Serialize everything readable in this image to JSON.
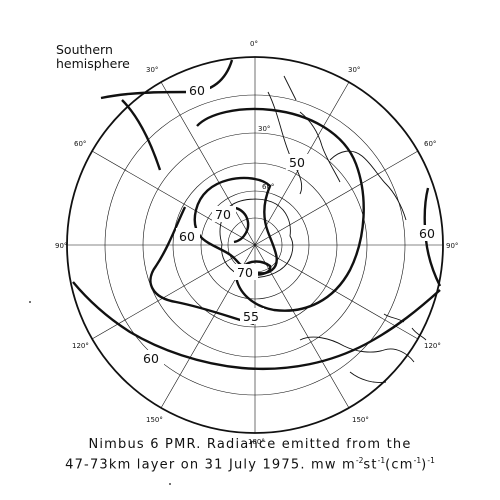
{
  "hemisphere_label": {
    "line1": "Southern",
    "line2": "hemisphere"
  },
  "caption": {
    "line1": "Nimbus 6 PMR. Radiance emitted from the",
    "line2": "47-73km layer on 31 July 1975. mw m",
    "exp1": "-2",
    "mid1": "st",
    "exp2": "-1",
    "mid2": "(cm",
    "exp3": "-1",
    "end": ")",
    "exp4": "-1"
  },
  "longitude_labels": [
    "0°",
    "30°",
    "60°",
    "90°",
    "120°",
    "150°",
    "180°",
    "150°",
    "120°",
    "90°",
    "60°",
    "30°"
  ],
  "latitude_labels": [
    "30°",
    "60°"
  ],
  "contour_labels": [
    "60",
    "50",
    "70",
    "60",
    "60",
    "70",
    "55",
    "60"
  ],
  "colors": {
    "ink": "#111111",
    "background": "#ffffff"
  }
}
